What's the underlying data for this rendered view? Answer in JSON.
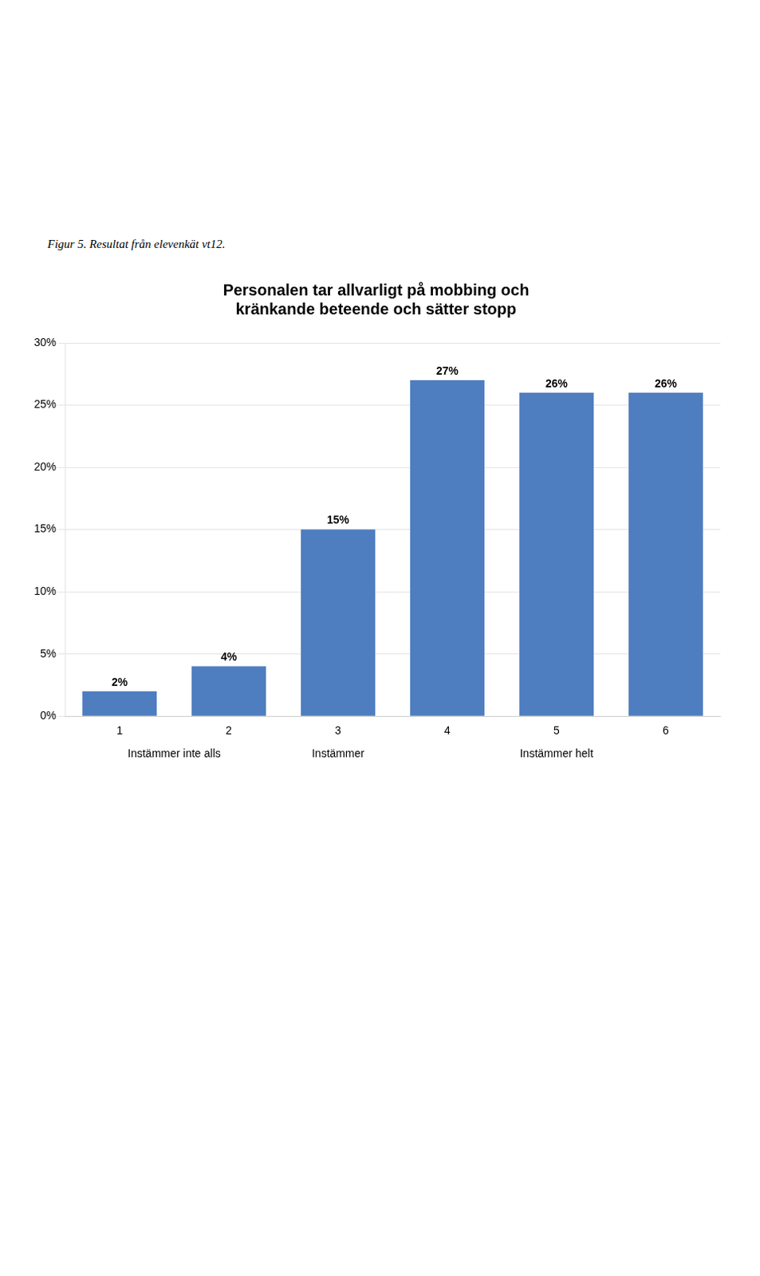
{
  "chart_data": {
    "type": "bar",
    "title": "Personalen tar allvarligt på mobbing och\nkränkande beteende och sätter stopp",
    "caption": "Figur 5. Resultat från elevenkät vt12.",
    "categories": [
      "1",
      "2",
      "3",
      "4",
      "5",
      "6"
    ],
    "values": [
      2,
      4,
      15,
      27,
      26,
      26
    ],
    "value_labels": [
      "2%",
      "4%",
      "15%",
      "27%",
      "26%",
      "26%"
    ],
    "data_labels": true,
    "color": "#4F7EC0",
    "ylim": [
      0,
      30
    ],
    "yticks": [
      {
        "value": 0,
        "label": "0%"
      },
      {
        "value": 5,
        "label": "5%"
      },
      {
        "value": 10,
        "label": "10%"
      },
      {
        "value": 15,
        "label": "15%"
      },
      {
        "value": 20,
        "label": "20%"
      },
      {
        "value": 25,
        "label": "25%"
      },
      {
        "value": 30,
        "label": "30%"
      }
    ],
    "grid": true,
    "annotations": [
      {
        "text": "Instämmer inte alls",
        "categories": [
          "1",
          "2"
        ]
      },
      {
        "text": "Instämmer",
        "categories": [
          "3"
        ]
      },
      {
        "text": "Instämmer helt",
        "categories": [
          "4",
          "5",
          "6"
        ]
      }
    ]
  }
}
